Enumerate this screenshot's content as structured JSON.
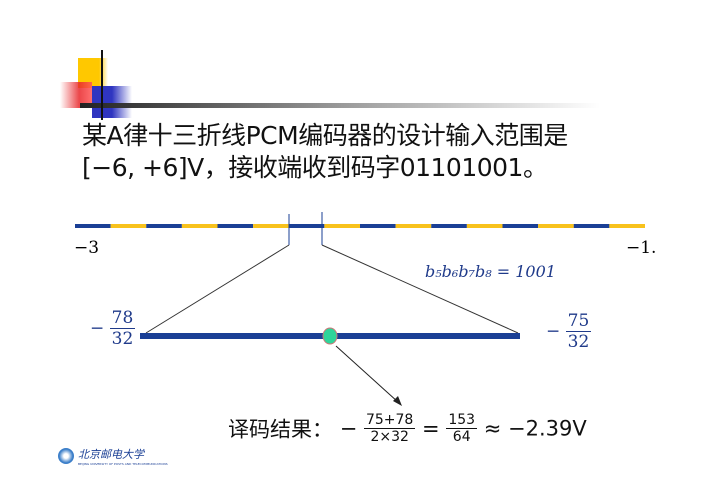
{
  "title_lines": [
    "某A律十三折线PCM编码器的设计输入范围是",
    "[−6, +6]V，接收端收到码字01101001。"
  ],
  "axis": {
    "left_label": "−3",
    "right_label": "−1."
  },
  "segment_code": "b₅b₆b₇b₈ = 1001",
  "interval": {
    "left": {
      "sign": "−",
      "num": "78",
      "den": "32"
    },
    "right": {
      "sign": "−",
      "num": "75",
      "den": "32"
    }
  },
  "result": {
    "label": "译码结果：",
    "sign": "−",
    "f1_num": "75+78",
    "f1_den": "2×32",
    "eq": "=",
    "f2_num": "153",
    "f2_den": "64",
    "approx": "≈ −2.39V"
  },
  "logo": {
    "text": "北京邮电大学",
    "subtext": "BEIJING UNIVERSITY OF POSTS AND TELECOMMUNICATIONS"
  },
  "colors": {
    "blue": "#1a3f95",
    "yellow": "#f8c21c",
    "dot": "#2ed49a",
    "red": "#e8262a"
  }
}
